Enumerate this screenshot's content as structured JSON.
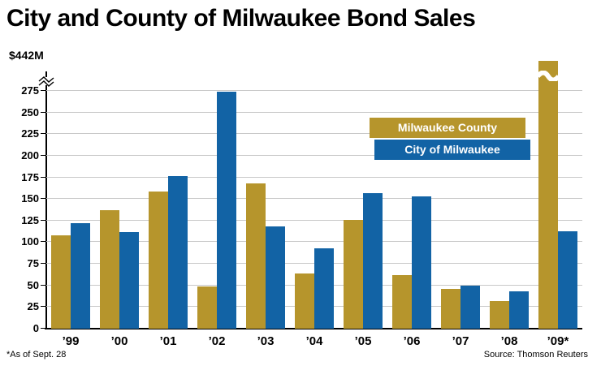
{
  "title": "City and County of Milwaukee Bond Sales",
  "y_axis_top_label": "$442M",
  "footnote": "*As of Sept. 28",
  "source": "Source: Thomson Reuters",
  "legend": [
    {
      "label": "Milwaukee County",
      "color": "#b6952c"
    },
    {
      "label": "City of Milwaukee",
      "color": "#1263a5"
    }
  ],
  "colors": {
    "county": "#b6952c",
    "city": "#1263a5",
    "gridline": "#c9c9c9"
  },
  "chart_data": {
    "type": "bar",
    "title": "City and County of Milwaukee Bond Sales",
    "categories": [
      "’99",
      "’00",
      "’01",
      "’02",
      "’03",
      "’04",
      "’05",
      "’06",
      "’07",
      "’08",
      "’09*"
    ],
    "series": [
      {
        "name": "Milwaukee County",
        "color": "#b6952c",
        "values": [
          108,
          137,
          159,
          49,
          168,
          64,
          126,
          62,
          46,
          32,
          442
        ]
      },
      {
        "name": "City of Milwaukee",
        "color": "#1263a5",
        "values": [
          122,
          112,
          176,
          274,
          118,
          93,
          157,
          153,
          50,
          43,
          113
        ]
      }
    ],
    "xlabel": "",
    "ylabel": "",
    "ylim": [
      0,
      275
    ],
    "y_ticks": [
      0,
      25,
      50,
      75,
      100,
      125,
      150,
      175,
      200,
      225,
      250,
      275
    ],
    "axis_break_value": 442,
    "grid": true,
    "legend_position": "upper-center-right",
    "units": "millions of dollars"
  }
}
